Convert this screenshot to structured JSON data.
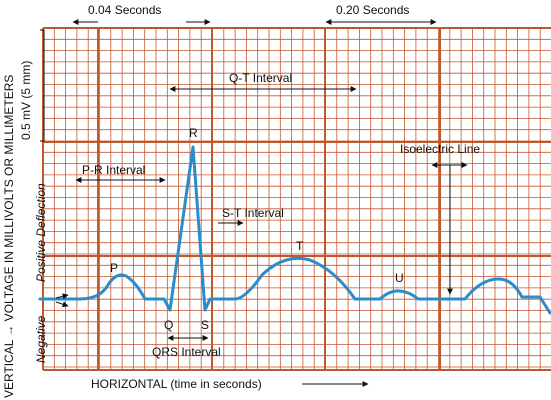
{
  "labels": {
    "small_box_time": "0.04 Seconds",
    "large_box_time": "0.20 Seconds",
    "qt_interval": "Q-T Interval",
    "pr_interval": "P-R Interval",
    "st_interval": "S-T Interval",
    "qrs_interval": "QRS Interval",
    "isoelectric_line": "Isoelectric Line",
    "amplitude": "0.5 mV (5 mm)",
    "vertical_axis": "VERTICAL → VOLTAGE IN MILLIVOLTS OR MILLIMETERS",
    "positive_deflection": "Positive Deflection",
    "negative": "Negative",
    "horizontal_axis": "HORIZONTAL (time in seconds)"
  },
  "waves": {
    "p": "P",
    "q": "Q",
    "r": "R",
    "s": "S",
    "t": "T",
    "u": "U"
  },
  "colors": {
    "grid_line": "#c0582e",
    "trace": "#2a8ccc",
    "text": "#111111",
    "arrow": "#111111"
  }
}
